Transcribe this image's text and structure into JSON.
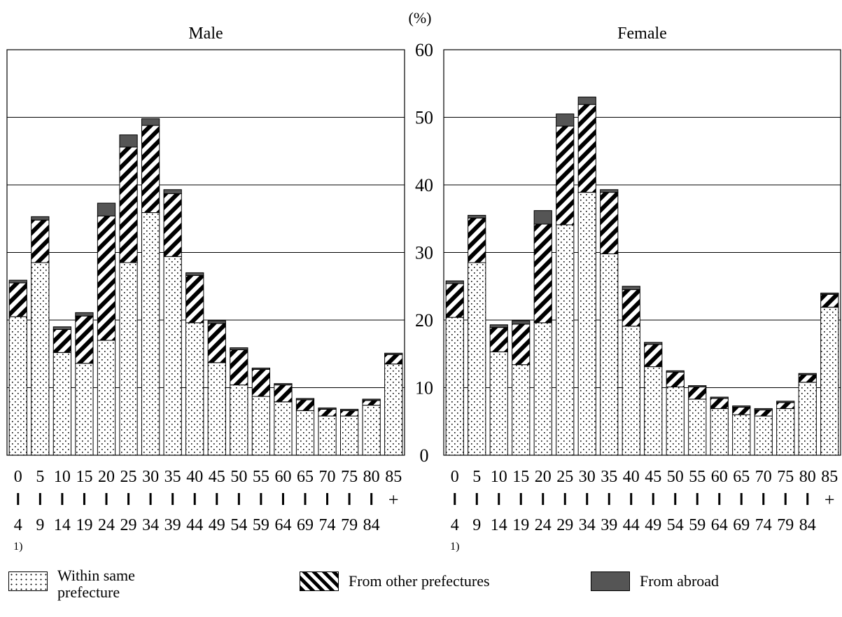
{
  "unit_label": "(%)",
  "chart_data": {
    "type": "bar",
    "stacked": true,
    "ylim": [
      0,
      60
    ],
    "y_ticks": [
      "0",
      "10",
      "20",
      "30",
      "40",
      "50",
      "60"
    ],
    "grid": true,
    "categories": [
      {
        "top": "0",
        "mid": "I",
        "bottom": "4",
        "note": "1)"
      },
      {
        "top": "5",
        "mid": "I",
        "bottom": "9"
      },
      {
        "top": "10",
        "mid": "I",
        "bottom": "14"
      },
      {
        "top": "15",
        "mid": "I",
        "bottom": "19"
      },
      {
        "top": "20",
        "mid": "I",
        "bottom": "24"
      },
      {
        "top": "25",
        "mid": "I",
        "bottom": "29"
      },
      {
        "top": "30",
        "mid": "I",
        "bottom": "34"
      },
      {
        "top": "35",
        "mid": "I",
        "bottom": "39"
      },
      {
        "top": "40",
        "mid": "I",
        "bottom": "44"
      },
      {
        "top": "45",
        "mid": "I",
        "bottom": "49"
      },
      {
        "top": "50",
        "mid": "I",
        "bottom": "54"
      },
      {
        "top": "55",
        "mid": "I",
        "bottom": "59"
      },
      {
        "top": "60",
        "mid": "I",
        "bottom": "64"
      },
      {
        "top": "65",
        "mid": "I",
        "bottom": "69"
      },
      {
        "top": "70",
        "mid": "I",
        "bottom": "74"
      },
      {
        "top": "75",
        "mid": "I",
        "bottom": "79"
      },
      {
        "top": "80",
        "mid": "I",
        "bottom": "84"
      },
      {
        "top": "85",
        "mid": "+",
        "bottom": ""
      }
    ],
    "panels": [
      {
        "title": "Male",
        "series": [
          {
            "name": "Within same prefecture",
            "values": [
              20.5,
              28.5,
              15.2,
              13.6,
              17.0,
              28.5,
              35.9,
              29.4,
              19.6,
              13.7,
              10.4,
              8.7,
              7.9,
              6.6,
              5.8,
              5.8,
              7.4,
              13.5
            ]
          },
          {
            "name": "From other prefectures",
            "values": [
              5.0,
              6.3,
              3.4,
              7.0,
              18.4,
              17.1,
              12.9,
              9.3,
              7.0,
              5.8,
              5.2,
              4.0,
              2.5,
              1.6,
              1.0,
              0.8,
              0.7,
              1.4
            ]
          },
          {
            "name": "From abroad",
            "values": [
              0.4,
              0.5,
              0.4,
              0.5,
              1.9,
              1.8,
              1.0,
              0.6,
              0.4,
              0.4,
              0.3,
              0.2,
              0.2,
              0.2,
              0.2,
              0.2,
              0.2,
              0.2
            ]
          }
        ]
      },
      {
        "title": "Female",
        "series": [
          {
            "name": "Within same prefecture",
            "values": [
              20.4,
              28.5,
              15.3,
              13.4,
              19.6,
              34.1,
              38.9,
              29.8,
              19.1,
              13.1,
              10.1,
              8.3,
              6.9,
              6.0,
              5.8,
              6.9,
              10.8,
              21.9
            ]
          },
          {
            "name": "From other prefectures",
            "values": [
              5.0,
              6.6,
              3.6,
              6.0,
              14.6,
              14.6,
              13.0,
              9.1,
              5.4,
              3.3,
              2.2,
              1.8,
              1.5,
              1.1,
              0.9,
              0.9,
              1.1,
              1.9
            ]
          },
          {
            "name": "From abroad",
            "values": [
              0.4,
              0.4,
              0.4,
              0.5,
              2.0,
              1.8,
              1.1,
              0.4,
              0.5,
              0.3,
              0.2,
              0.2,
              0.2,
              0.2,
              0.2,
              0.2,
              0.2,
              0.2
            ]
          }
        ]
      }
    ]
  },
  "legend": [
    {
      "label_line1": "Within same",
      "label_line2": "prefecture",
      "pattern": "dots"
    },
    {
      "label_line1": "From other prefectures",
      "label_line2": "",
      "pattern": "stripes"
    },
    {
      "label_line1": "From abroad",
      "label_line2": "",
      "pattern": "solid"
    }
  ],
  "colors": {
    "bar_outline": "#000000",
    "grid": "#000000",
    "abroad_fill": "#555555",
    "dot": "#000000"
  }
}
